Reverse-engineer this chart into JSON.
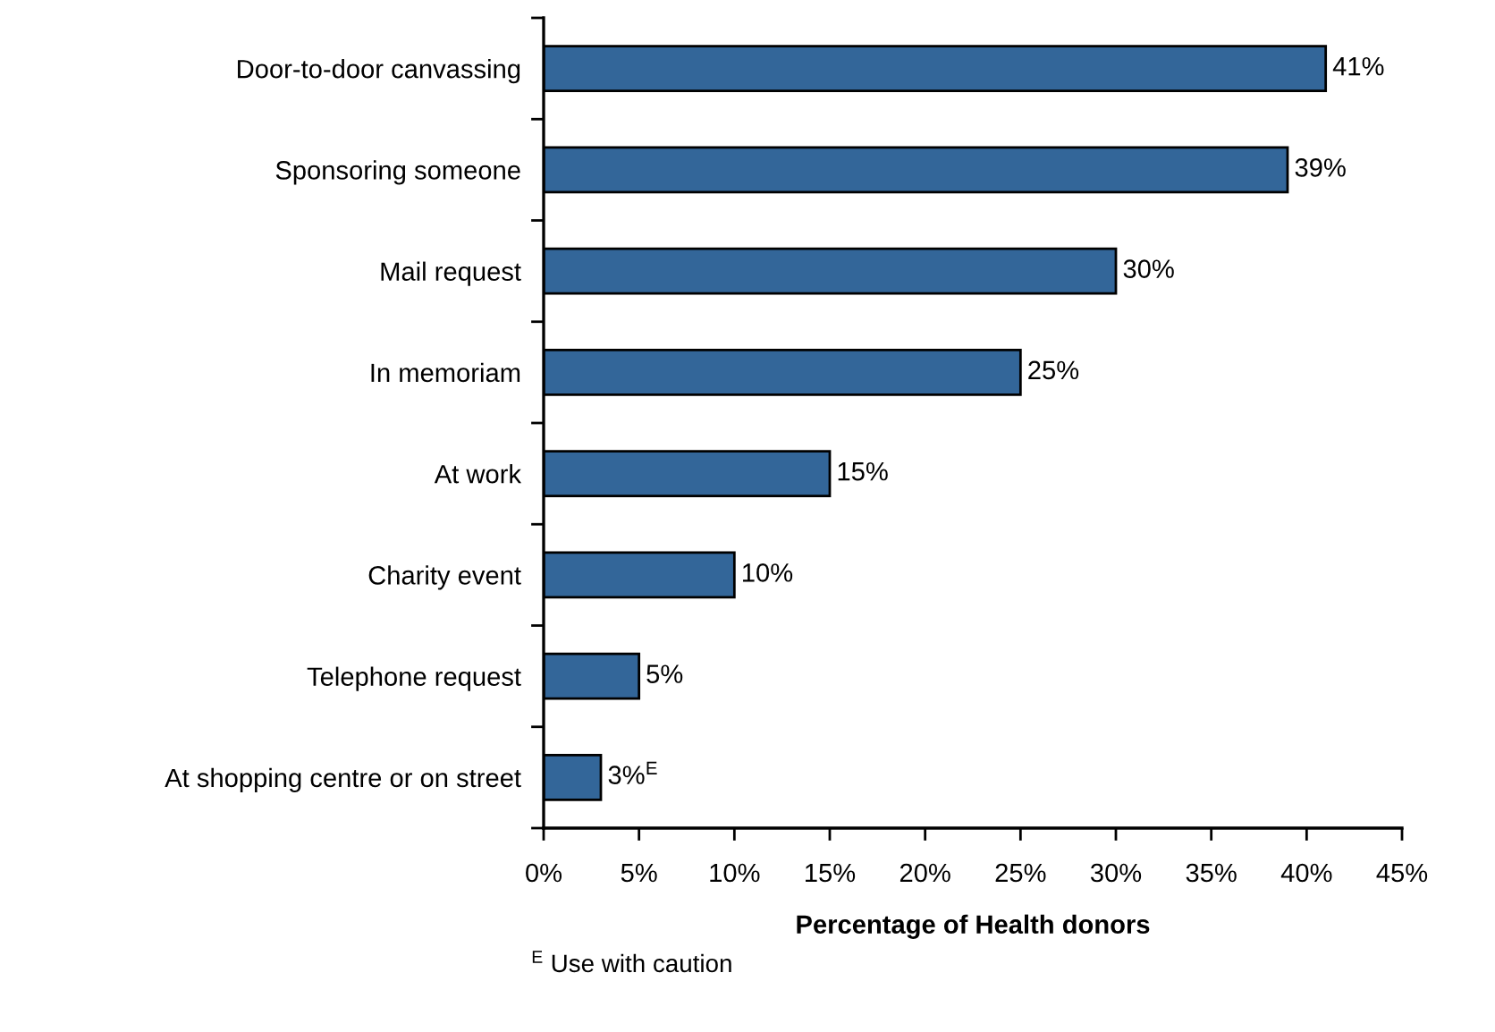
{
  "chart_data": {
    "type": "bar",
    "orientation": "horizontal",
    "categories": [
      "Door-to-door canvassing",
      "Sponsoring someone",
      "Mail request",
      "In memoriam",
      "At work",
      "Charity event",
      "Telephone request",
      "At shopping centre or on street"
    ],
    "values": [
      41,
      39,
      30,
      25,
      15,
      10,
      5,
      3
    ],
    "color": "#336699",
    "value_labels": [
      "41%",
      "39%",
      "30%",
      "25%",
      "15%",
      "10%",
      "5%",
      "3%$^{E}$"
    ],
    "xlabel": "Percentage of Health donors",
    "xlim": [
      0,
      45
    ],
    "xticks": [
      {
        "value": 0,
        "label": "0%"
      },
      {
        "value": 5,
        "label": "5%"
      },
      {
        "value": 10,
        "label": "10%"
      },
      {
        "value": 15,
        "label": "15%"
      },
      {
        "value": 20,
        "label": "20%"
      },
      {
        "value": 25,
        "label": "25%"
      },
      {
        "value": 30,
        "label": "30%"
      },
      {
        "value": 35,
        "label": "35%"
      },
      {
        "value": 40,
        "label": "40%"
      },
      {
        "value": 45,
        "label": "45%"
      }
    ],
    "annotations": [
      "$^{E}$ Use with caution"
    ],
    "grid": false,
    "legend": false
  }
}
